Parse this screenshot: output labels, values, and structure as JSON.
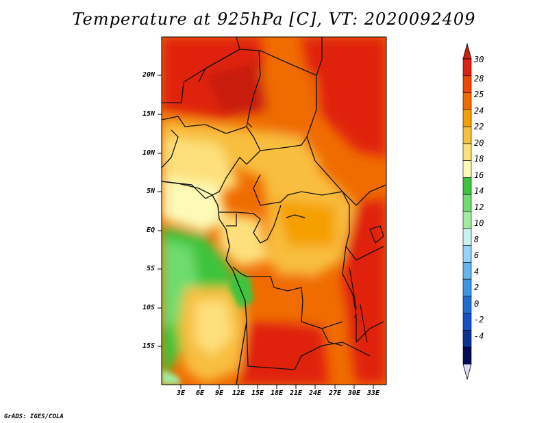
{
  "title": "Temperature at 925hPa [C], VT: 2020092409",
  "credit": "GrADS: IGES/COLA",
  "lat_labels": [
    "20N",
    "15N",
    "10N",
    "5N",
    "EQ",
    "5S",
    "10S",
    "15S"
  ],
  "lon_labels": [
    "3E",
    "6E",
    "9E",
    "12E",
    "15E",
    "18E",
    "21E",
    "24E",
    "27E",
    "30E",
    "33E"
  ],
  "colorbar": {
    "labels": [
      "30",
      "28",
      "25",
      "24",
      "22",
      "20",
      "18",
      "16",
      "14",
      "12",
      "10",
      "8",
      "6",
      "4",
      "2",
      "0",
      "-2",
      "-4"
    ],
    "colors": [
      "#e02010",
      "#f04800",
      "#f06c00",
      "#f5a000",
      "#f8be3c",
      "#fde07c",
      "#fdfab6",
      "#3cc43c",
      "#6edc6e",
      "#a0eca0",
      "#c8f2f0",
      "#96d2fa",
      "#64b4f0",
      "#3c96e6",
      "#1e6ed2",
      "#1450c8",
      "#0c3296",
      "#040c5a"
    ],
    "top_arrow_color": "#d02010",
    "bottom_arrow_color": "#dcdcf8"
  }
}
